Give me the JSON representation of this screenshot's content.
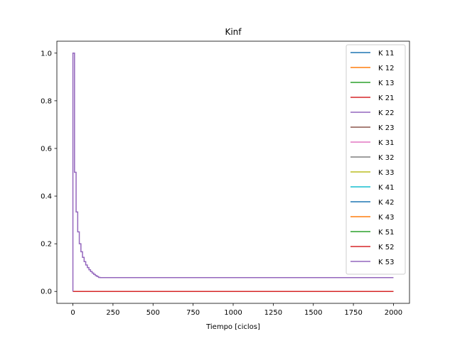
{
  "chart_data": {
    "type": "line",
    "title": "Kinf",
    "xlabel": "Tiempo [ciclos]",
    "ylabel": "",
    "xlim": [
      -100,
      2100
    ],
    "ylim": [
      -0.05,
      1.05
    ],
    "xticks": [
      0,
      250,
      500,
      750,
      1000,
      1250,
      1500,
      1750,
      2000
    ],
    "yticks": [
      0.0,
      0.2,
      0.4,
      0.6,
      0.8,
      1.0
    ],
    "xtick_labels": [
      "0",
      "250",
      "500",
      "750",
      "1000",
      "1250",
      "1500",
      "1750",
      "2000"
    ],
    "ytick_labels": [
      "0.0",
      "0.2",
      "0.4",
      "0.6",
      "0.8",
      "1.0"
    ],
    "grid": false,
    "legend_position": "top-right",
    "series": [
      {
        "name": "K 11",
        "color": "#1f77b4",
        "shape": "zero",
        "x_range": [
          0,
          2000
        ],
        "values_note": "0 throughout"
      },
      {
        "name": "K 12",
        "color": "#ff7f0e",
        "shape": "zero",
        "x_range": [
          0,
          2000
        ]
      },
      {
        "name": "K 13",
        "color": "#2ca02c",
        "shape": "zero",
        "x_range": [
          0,
          2000
        ]
      },
      {
        "name": "K 21",
        "color": "#d62728",
        "shape": "zero",
        "x_range": [
          0,
          2000
        ]
      },
      {
        "name": "K 22",
        "color": "#9467bd",
        "shape": "zero",
        "x_range": [
          0,
          2000
        ]
      },
      {
        "name": "K 23",
        "color": "#8c564b",
        "shape": "zero",
        "x_range": [
          0,
          2000
        ]
      },
      {
        "name": "K 31",
        "color": "#e377c2",
        "shape": "zero",
        "x_range": [
          0,
          2000
        ]
      },
      {
        "name": "K 32",
        "color": "#7f7f7f",
        "shape": "zero",
        "x_range": [
          0,
          2000
        ]
      },
      {
        "name": "K 33",
        "color": "#bcbd22",
        "shape": "zero",
        "x_range": [
          0,
          2000
        ]
      },
      {
        "name": "K 41",
        "color": "#17becf",
        "shape": "zero",
        "x_range": [
          0,
          2000
        ]
      },
      {
        "name": "K 42",
        "color": "#1f77b4",
        "shape": "zero",
        "x_range": [
          0,
          2000
        ]
      },
      {
        "name": "K 43",
        "color": "#ff7f0e",
        "shape": "zero",
        "x_range": [
          0,
          2000
        ]
      },
      {
        "name": "K 51",
        "color": "#2ca02c",
        "shape": "zero",
        "x_range": [
          0,
          2000
        ]
      },
      {
        "name": "K 52",
        "color": "#d62728",
        "shape": "zero",
        "x_range": [
          0,
          2000
        ]
      },
      {
        "name": "K 53",
        "color": "#9467bd",
        "shape": "decay",
        "x_range": [
          0,
          2000
        ],
        "step_width": 10,
        "final_value": 0.058,
        "description_points": [
          [
            0,
            0
          ],
          [
            0,
            1.0
          ],
          [
            10,
            1.0
          ],
          [
            10,
            0.5
          ],
          [
            20,
            0.5
          ],
          [
            20,
            0.333
          ],
          [
            30,
            0.333
          ],
          [
            30,
            0.25
          ],
          [
            40,
            0.25
          ],
          [
            40,
            0.2
          ],
          [
            50,
            0.2
          ],
          [
            50,
            0.167
          ],
          [
            60,
            0.167
          ],
          [
            60,
            0.143
          ],
          [
            2000,
            0.058
          ]
        ]
      }
    ]
  }
}
